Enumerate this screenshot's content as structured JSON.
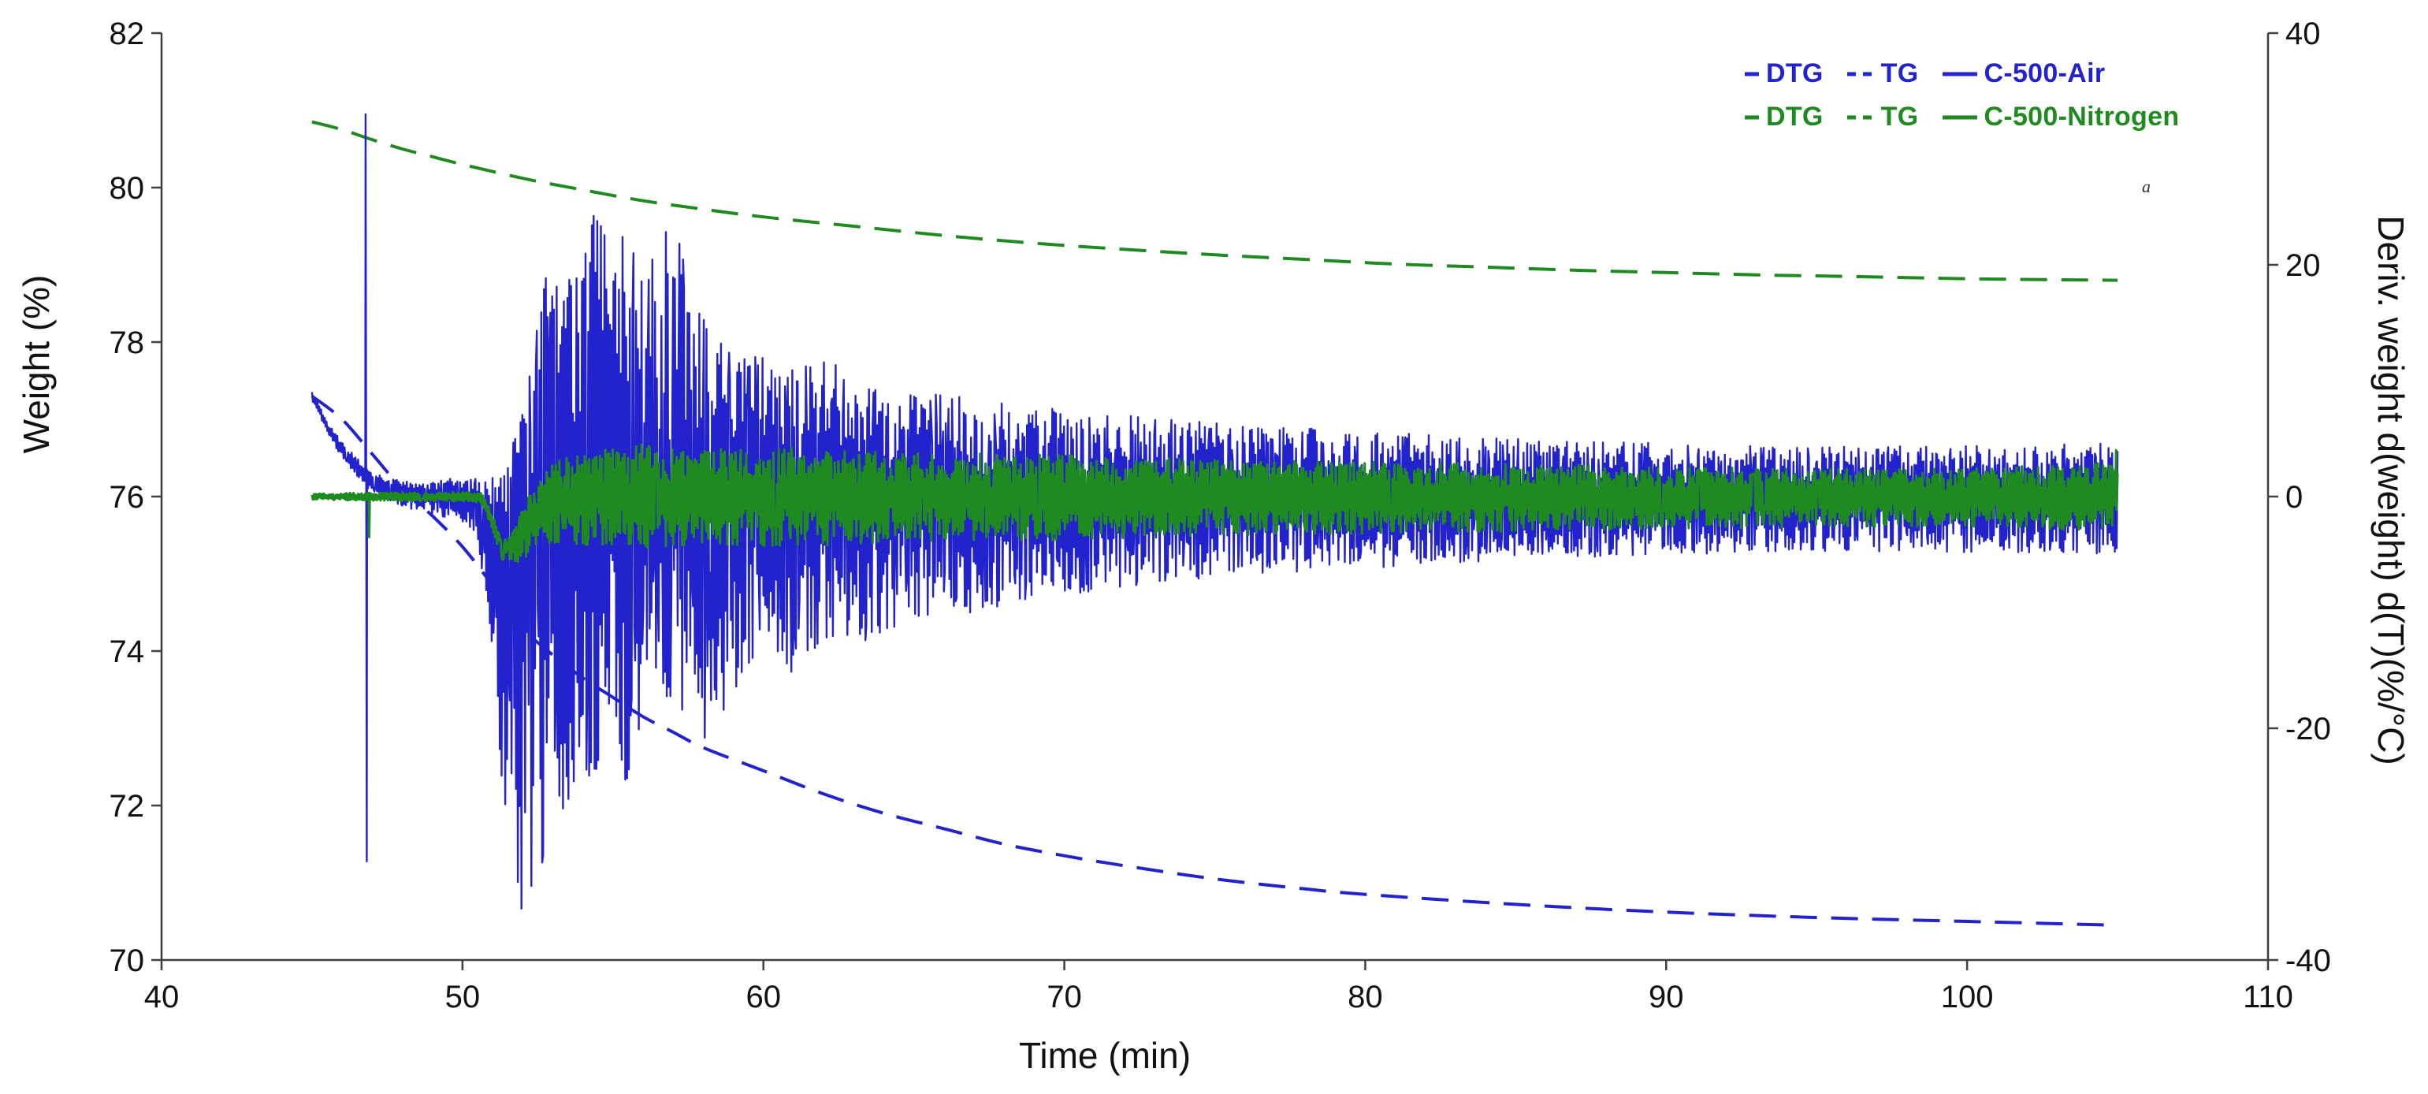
{
  "chart_data": {
    "type": "line",
    "title": "",
    "xlabel": "Time (min)",
    "ylabel_left": "Weight (%)",
    "ylabel_right": "Deriv. weight d(weight) d(T)(%/°C)",
    "annotation": "a",
    "xlim": [
      40,
      110
    ],
    "ylim_left": [
      70,
      82
    ],
    "ylim_right": [
      -40,
      40
    ],
    "x_ticks": [
      40,
      50,
      60,
      70,
      80,
      90,
      100,
      110
    ],
    "y_ticks_left": [
      70,
      72,
      74,
      76,
      78,
      80,
      82
    ],
    "y_ticks_right": [
      -40,
      -20,
      0,
      20,
      40
    ],
    "grid": false,
    "legend_position": "top-right",
    "colors": {
      "air": "#2323cd",
      "nitrogen": "#1f8a1f"
    },
    "legend": {
      "rows": [
        {
          "series": "C-500-Air",
          "color": "#2323cd",
          "items": [
            {
              "marker": "dash",
              "label": "DTG"
            },
            {
              "marker": "dashed",
              "label": "TG"
            },
            {
              "marker": "solid",
              "label": "C-500-Air"
            }
          ]
        },
        {
          "series": "C-500-Nitrogen",
          "color": "#1f8a1f",
          "items": [
            {
              "marker": "dash",
              "label": "DTG"
            },
            {
              "marker": "dashed",
              "label": "TG"
            },
            {
              "marker": "solid",
              "label": "C-500-Nitrogen"
            }
          ]
        }
      ]
    },
    "series": [
      {
        "id": "tg-nitrogen",
        "name": "C-500-Nitrogen TG",
        "kind": "tg",
        "axis": "left",
        "color": "#1f8a1f",
        "dash": "long",
        "width": 4,
        "points": [
          [
            45,
            80.85
          ],
          [
            46,
            80.75
          ],
          [
            47,
            80.62
          ],
          [
            48,
            80.5
          ],
          [
            49,
            80.4
          ],
          [
            50,
            80.3
          ],
          [
            52,
            80.12
          ],
          [
            54,
            79.97
          ],
          [
            56,
            79.83
          ],
          [
            58,
            79.72
          ],
          [
            60,
            79.62
          ],
          [
            63,
            79.5
          ],
          [
            66,
            79.38
          ],
          [
            69,
            79.28
          ],
          [
            72,
            79.2
          ],
          [
            75,
            79.13
          ],
          [
            78,
            79.07
          ],
          [
            81,
            79.01
          ],
          [
            84,
            78.97
          ],
          [
            87,
            78.93
          ],
          [
            90,
            78.9
          ],
          [
            93,
            78.87
          ],
          [
            96,
            78.85
          ],
          [
            100,
            78.82
          ],
          [
            105,
            78.8
          ]
        ]
      },
      {
        "id": "tg-air",
        "name": "C-500-Air TG",
        "kind": "tg",
        "axis": "left",
        "color": "#2323cd",
        "dash": "long",
        "width": 4,
        "points": [
          [
            45,
            77.3
          ],
          [
            46,
            77.0
          ],
          [
            47,
            76.55
          ],
          [
            48,
            76.1
          ],
          [
            49,
            75.75
          ],
          [
            50,
            75.35
          ],
          [
            51,
            74.85
          ],
          [
            52,
            74.3
          ],
          [
            53,
            73.95
          ],
          [
            54,
            73.65
          ],
          [
            55,
            73.4
          ],
          [
            56,
            73.15
          ],
          [
            57,
            72.95
          ],
          [
            58,
            72.75
          ],
          [
            60,
            72.45
          ],
          [
            62,
            72.15
          ],
          [
            64,
            71.9
          ],
          [
            66,
            71.7
          ],
          [
            68,
            71.5
          ],
          [
            70,
            71.35
          ],
          [
            72,
            71.22
          ],
          [
            75,
            71.05
          ],
          [
            78,
            70.92
          ],
          [
            80,
            70.85
          ],
          [
            85,
            70.72
          ],
          [
            90,
            70.62
          ],
          [
            95,
            70.55
          ],
          [
            100,
            70.5
          ],
          [
            105,
            70.45
          ]
        ]
      },
      {
        "id": "dtg-air",
        "name": "C-500-Air DTG",
        "kind": "dtg",
        "axis": "right",
        "color": "#2323cd",
        "width": 2.4,
        "seed": 42,
        "center": [
          [
            45,
            8.7
          ],
          [
            45.5,
            6
          ],
          [
            46,
            4
          ],
          [
            46.5,
            2.5
          ],
          [
            47,
            1.2
          ],
          [
            48,
            0.3
          ],
          [
            50,
            0
          ],
          [
            50.5,
            -0.8
          ],
          [
            51,
            -2.5
          ],
          [
            51.5,
            -5
          ],
          [
            52,
            -4
          ],
          [
            52.5,
            -2.5
          ],
          [
            53,
            -1
          ],
          [
            54,
            0
          ],
          [
            105,
            0
          ]
        ],
        "envelope_up": [
          [
            45,
            0.4
          ],
          [
            46.5,
            0.8
          ],
          [
            48,
            1.0
          ],
          [
            50,
            1.6
          ],
          [
            50.8,
            3
          ],
          [
            51.5,
            8
          ],
          [
            52,
            14
          ],
          [
            52.5,
            19
          ],
          [
            53,
            22
          ],
          [
            54,
            25
          ],
          [
            55,
            23.5
          ],
          [
            56,
            22
          ],
          [
            57,
            23.5
          ],
          [
            58,
            16
          ],
          [
            59,
            13
          ],
          [
            60,
            12
          ],
          [
            61,
            11
          ],
          [
            62,
            12.5
          ],
          [
            63,
            10
          ],
          [
            65,
            9
          ],
          [
            67,
            8.5
          ],
          [
            70,
            7.5
          ],
          [
            73,
            6.8
          ],
          [
            76,
            6.2
          ],
          [
            80,
            5.6
          ],
          [
            85,
            5
          ],
          [
            90,
            4.6
          ],
          [
            95,
            4.4
          ],
          [
            100,
            4.4
          ],
          [
            105,
            4.6
          ]
        ],
        "envelope_down": [
          [
            45,
            0.4
          ],
          [
            46.5,
            0.8
          ],
          [
            48,
            1.2
          ],
          [
            50,
            2.2
          ],
          [
            50.8,
            7
          ],
          [
            51.5,
            26
          ],
          [
            52,
            34
          ],
          [
            52.5,
            31
          ],
          [
            53,
            27
          ],
          [
            54,
            25
          ],
          [
            55,
            22
          ],
          [
            55.5,
            26
          ],
          [
            56,
            20
          ],
          [
            57,
            18
          ],
          [
            58,
            22
          ],
          [
            59,
            17
          ],
          [
            60,
            14
          ],
          [
            61,
            15.5
          ],
          [
            62,
            12.5
          ],
          [
            63,
            13.5
          ],
          [
            65,
            10.5
          ],
          [
            67,
            10
          ],
          [
            70,
            8.5
          ],
          [
            73,
            7.5
          ],
          [
            76,
            6.8
          ],
          [
            80,
            6.2
          ],
          [
            85,
            5.4
          ],
          [
            90,
            5
          ],
          [
            95,
            4.8
          ],
          [
            100,
            4.8
          ],
          [
            105,
            5
          ]
        ],
        "spikes": [
          {
            "x": 46.78,
            "value": 33
          },
          {
            "x": 46.82,
            "value": -31.5
          }
        ]
      },
      {
        "id": "dtg-nitrogen",
        "name": "C-500-Nitrogen DTG",
        "kind": "dtg",
        "axis": "right",
        "color": "#1f8a1f",
        "width": 3,
        "seed": 1337,
        "center": [
          [
            45,
            0
          ],
          [
            50.6,
            0
          ],
          [
            51,
            -2
          ],
          [
            51.3,
            -4.5
          ],
          [
            51.8,
            -3.8
          ],
          [
            52.3,
            -2
          ],
          [
            53,
            -0.5
          ],
          [
            54,
            0
          ],
          [
            105,
            0
          ]
        ],
        "envelope_up": [
          [
            45,
            0.3
          ],
          [
            50.5,
            0.4
          ],
          [
            51.5,
            0.8
          ],
          [
            52,
            2
          ],
          [
            53,
            3.5
          ],
          [
            54,
            4
          ],
          [
            56,
            4.5
          ],
          [
            58,
            4
          ],
          [
            60,
            4.5
          ],
          [
            62,
            4
          ],
          [
            65,
            3.8
          ],
          [
            70,
            3.6
          ],
          [
            75,
            3.2
          ],
          [
            80,
            3
          ],
          [
            85,
            2.8
          ],
          [
            90,
            2.6
          ],
          [
            95,
            2.4
          ],
          [
            100,
            2.4
          ],
          [
            105,
            3
          ]
        ],
        "envelope_down": [
          [
            45,
            0.3
          ],
          [
            50.5,
            0.5
          ],
          [
            51.5,
            1.2
          ],
          [
            52,
            2.5
          ],
          [
            53,
            3.5
          ],
          [
            54,
            4.2
          ],
          [
            56,
            4.5
          ],
          [
            58,
            4.2
          ],
          [
            60,
            4.5
          ],
          [
            62,
            4.2
          ],
          [
            65,
            4
          ],
          [
            70,
            3.8
          ],
          [
            75,
            3.4
          ],
          [
            80,
            3.2
          ],
          [
            85,
            3
          ],
          [
            90,
            2.8
          ],
          [
            95,
            2.6
          ],
          [
            100,
            2.6
          ],
          [
            105,
            3
          ]
        ],
        "spikes": [
          {
            "x": 46.9,
            "value": -3.5
          },
          {
            "x": 104.95,
            "value": 4
          }
        ]
      }
    ]
  }
}
